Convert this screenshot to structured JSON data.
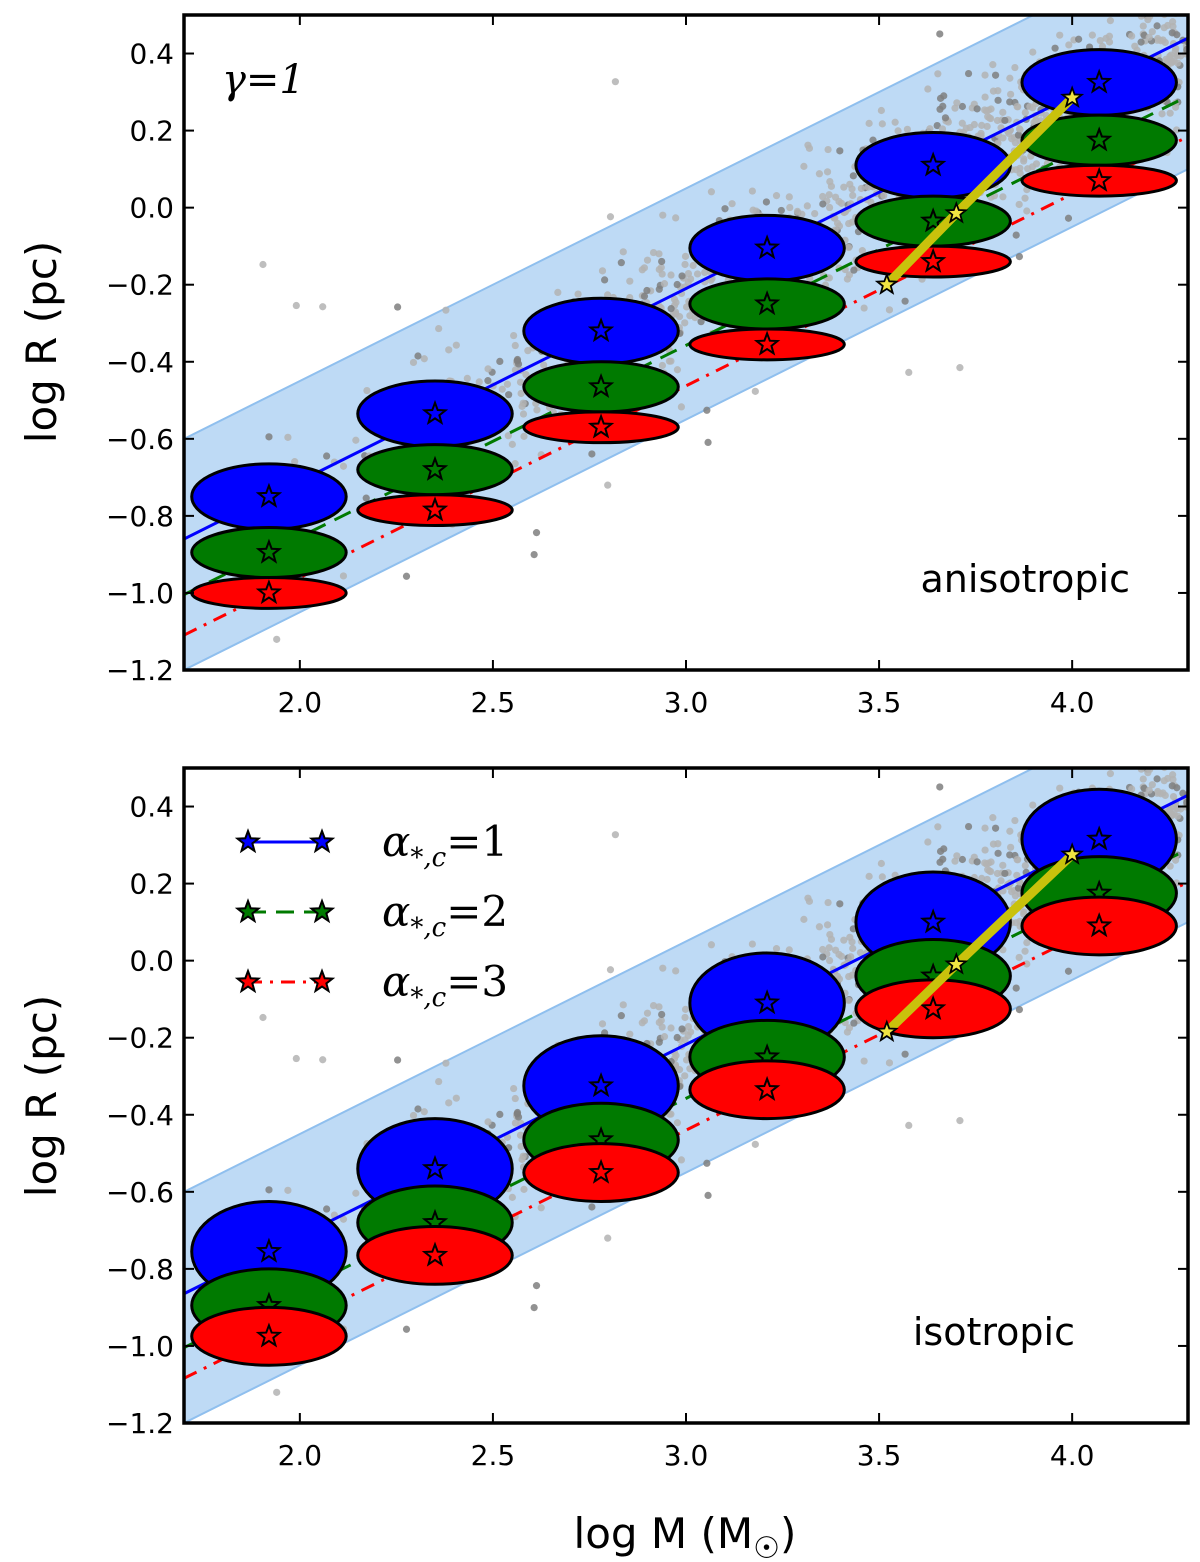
{
  "chart_data": [
    {
      "panel": "top",
      "type": "scatter",
      "label": "anisotropic",
      "annotation": "γ=1",
      "xlabel": "log M (M☉)",
      "ylabel": "log R (pc)",
      "xlim": [
        1.7,
        4.3
      ],
      "ylim": [
        -1.2,
        0.5
      ],
      "xticks": [
        2.0,
        2.5,
        3.0,
        3.5,
        4.0
      ],
      "xtick_labels": [
        "2.0",
        "2.5",
        "3.0",
        "3.5",
        "4.0"
      ],
      "yticks": [
        0.4,
        0.2,
        0.0,
        -0.2,
        -0.4,
        -0.6,
        -0.8,
        -1.0,
        -1.2
      ],
      "ytick_labels": [
        "0.4",
        "0.2",
        "0.0",
        "−0.2",
        "−0.4",
        "−0.6",
        "−0.8",
        "−1.0",
        "−1.2"
      ],
      "band": {
        "slope": 0.5,
        "intercept_upper": -1.45,
        "intercept_lower": -2.05,
        "color": "#a8cdf2"
      },
      "series": [
        {
          "name": "α*,c=1",
          "color": "#0000ff",
          "line": "solid",
          "x": [
            1.92,
            2.35,
            2.78,
            3.21,
            3.64,
            4.07
          ],
          "y": [
            -0.75,
            -0.535,
            -0.32,
            -0.105,
            0.11,
            0.325
          ],
          "ellipse_w": [
            0.2,
            0.2,
            0.2,
            0.2,
            0.2,
            0.2
          ],
          "ellipse_h": [
            0.085,
            0.085,
            0.085,
            0.085,
            0.085,
            0.085
          ]
        },
        {
          "name": "α*,c=2",
          "color": "#007a00",
          "line": "dashed",
          "x": [
            1.92,
            2.35,
            2.78,
            3.21,
            3.64,
            4.07
          ],
          "y": [
            -0.895,
            -0.68,
            -0.465,
            -0.25,
            -0.035,
            0.175
          ],
          "ellipse_w": [
            0.2,
            0.2,
            0.2,
            0.2,
            0.2,
            0.2
          ],
          "ellipse_h": [
            0.065,
            0.065,
            0.065,
            0.065,
            0.065,
            0.065
          ]
        },
        {
          "name": "α*,c=3",
          "color": "#ff0000",
          "line": "dashdot",
          "x": [
            1.92,
            2.35,
            2.78,
            3.21,
            3.64,
            4.07
          ],
          "y": [
            -1.0,
            -0.785,
            -0.57,
            -0.355,
            -0.14,
            0.07
          ],
          "ellipse_w": [
            0.2,
            0.2,
            0.2,
            0.2,
            0.2,
            0.2
          ],
          "ellipse_h": [
            0.04,
            0.04,
            0.04,
            0.04,
            0.04,
            0.04
          ]
        }
      ],
      "yellow_track": {
        "color": "#c9c20c",
        "x": [
          3.52,
          3.7,
          4.0
        ],
        "y": [
          -0.2,
          -0.015,
          0.285
        ]
      }
    },
    {
      "panel": "bottom",
      "type": "scatter",
      "label": "isotropic",
      "xlabel": "log M (M☉)",
      "ylabel": "log R (pc)",
      "xlim": [
        1.7,
        4.3
      ],
      "ylim": [
        -1.2,
        0.5
      ],
      "xticks": [
        2.0,
        2.5,
        3.0,
        3.5,
        4.0
      ],
      "xtick_labels": [
        "2.0",
        "2.5",
        "3.0",
        "3.5",
        "4.0"
      ],
      "yticks": [
        0.4,
        0.2,
        0.0,
        -0.2,
        -0.4,
        -0.6,
        -0.8,
        -1.0,
        -1.2
      ],
      "ytick_labels": [
        "0.4",
        "0.2",
        "0.0",
        "−0.2",
        "−0.4",
        "−0.6",
        "−0.8",
        "−1.0",
        "−1.2"
      ],
      "band": {
        "slope": 0.5,
        "intercept_upper": -1.45,
        "intercept_lower": -2.05,
        "color": "#a8cdf2"
      },
      "series": [
        {
          "name": "α*,c=1",
          "color": "#0000ff",
          "line": "solid",
          "x": [
            1.92,
            2.35,
            2.78,
            3.21,
            3.64,
            4.07
          ],
          "y": [
            -0.755,
            -0.54,
            -0.325,
            -0.11,
            0.1,
            0.315
          ],
          "ellipse_w": [
            0.2,
            0.2,
            0.2,
            0.2,
            0.2,
            0.2
          ],
          "ellipse_h": [
            0.13,
            0.13,
            0.13,
            0.13,
            0.13,
            0.13
          ]
        },
        {
          "name": "α*,c=2",
          "color": "#007a00",
          "line": "dashed",
          "x": [
            1.92,
            2.35,
            2.78,
            3.21,
            3.64,
            4.07
          ],
          "y": [
            -0.895,
            -0.68,
            -0.465,
            -0.25,
            -0.04,
            0.175
          ],
          "ellipse_w": [
            0.2,
            0.2,
            0.2,
            0.2,
            0.2,
            0.2
          ],
          "ellipse_h": [
            0.095,
            0.095,
            0.095,
            0.095,
            0.095,
            0.095
          ]
        },
        {
          "name": "α*,c=3",
          "color": "#ff0000",
          "line": "dashdot",
          "x": [
            1.92,
            2.35,
            2.78,
            3.21,
            3.64,
            4.07
          ],
          "y": [
            -0.975,
            -0.765,
            -0.55,
            -0.335,
            -0.125,
            0.09
          ],
          "ellipse_w": [
            0.2,
            0.2,
            0.2,
            0.2,
            0.2,
            0.2
          ],
          "ellipse_h": [
            0.075,
            0.075,
            0.075,
            0.075,
            0.075,
            0.075
          ]
        }
      ],
      "yellow_track": {
        "color": "#c9c20c",
        "x": [
          3.52,
          3.7,
          4.0
        ],
        "y": [
          -0.185,
          -0.01,
          0.275
        ]
      }
    }
  ],
  "legend": {
    "entries": [
      {
        "label": "α*,c=1",
        "symbol": "α",
        "sub": "*,c",
        "value": "=1",
        "color": "#0000ff",
        "line": "solid"
      },
      {
        "label": "α*,c=2",
        "symbol": "α",
        "sub": "*,c",
        "value": "=2",
        "color": "#007a00",
        "line": "dashed"
      },
      {
        "label": "α*,c=3",
        "symbol": "α",
        "sub": "*,c",
        "value": "=3",
        "color": "#ff0000",
        "line": "dashdot"
      }
    ]
  },
  "scatter_style": {
    "light": "#b3b3b3",
    "dark": "#7f7f7f"
  }
}
